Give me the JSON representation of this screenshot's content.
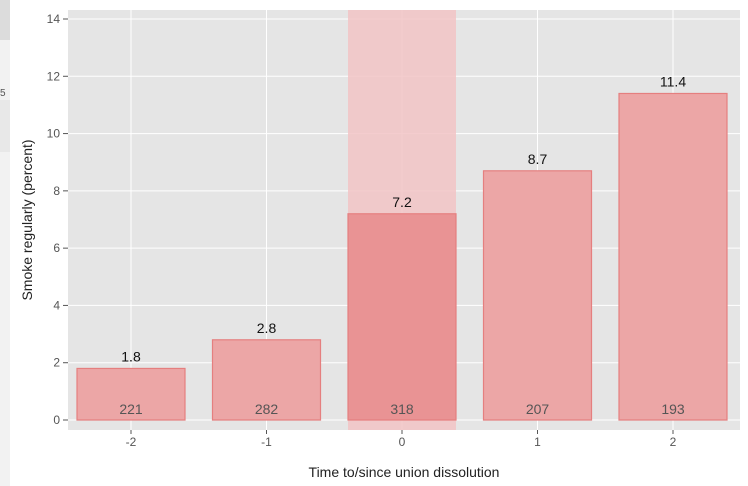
{
  "page_fragment": {
    "digit": "5"
  },
  "chart_data": {
    "type": "bar",
    "title": "",
    "xlabel": "Time to/since union dissolution",
    "ylabel": "Smoke regularly (percent)",
    "categories": [
      "-2",
      "-1",
      "0",
      "1",
      "2"
    ],
    "values": [
      1.8,
      2.8,
      7.2,
      8.7,
      11.4
    ],
    "value_labels": [
      "1.8",
      "2.8",
      "7.2",
      "8.7",
      "11.4"
    ],
    "counts": [
      "221",
      "282",
      "318",
      "207",
      "193"
    ],
    "highlight_category": "0",
    "ylim": [
      0,
      14
    ],
    "yticks": [
      0,
      2,
      4,
      6,
      8,
      10,
      12,
      14
    ],
    "grid": true,
    "legend": "none",
    "colors": {
      "panel": "#e5e5e5",
      "grid": "#ffffff",
      "bar_fill": "#eca6a6",
      "bar_stroke": "#e57f7f",
      "highlight_band": "#f2c4c6",
      "highlight_bar": "#e99394"
    }
  }
}
